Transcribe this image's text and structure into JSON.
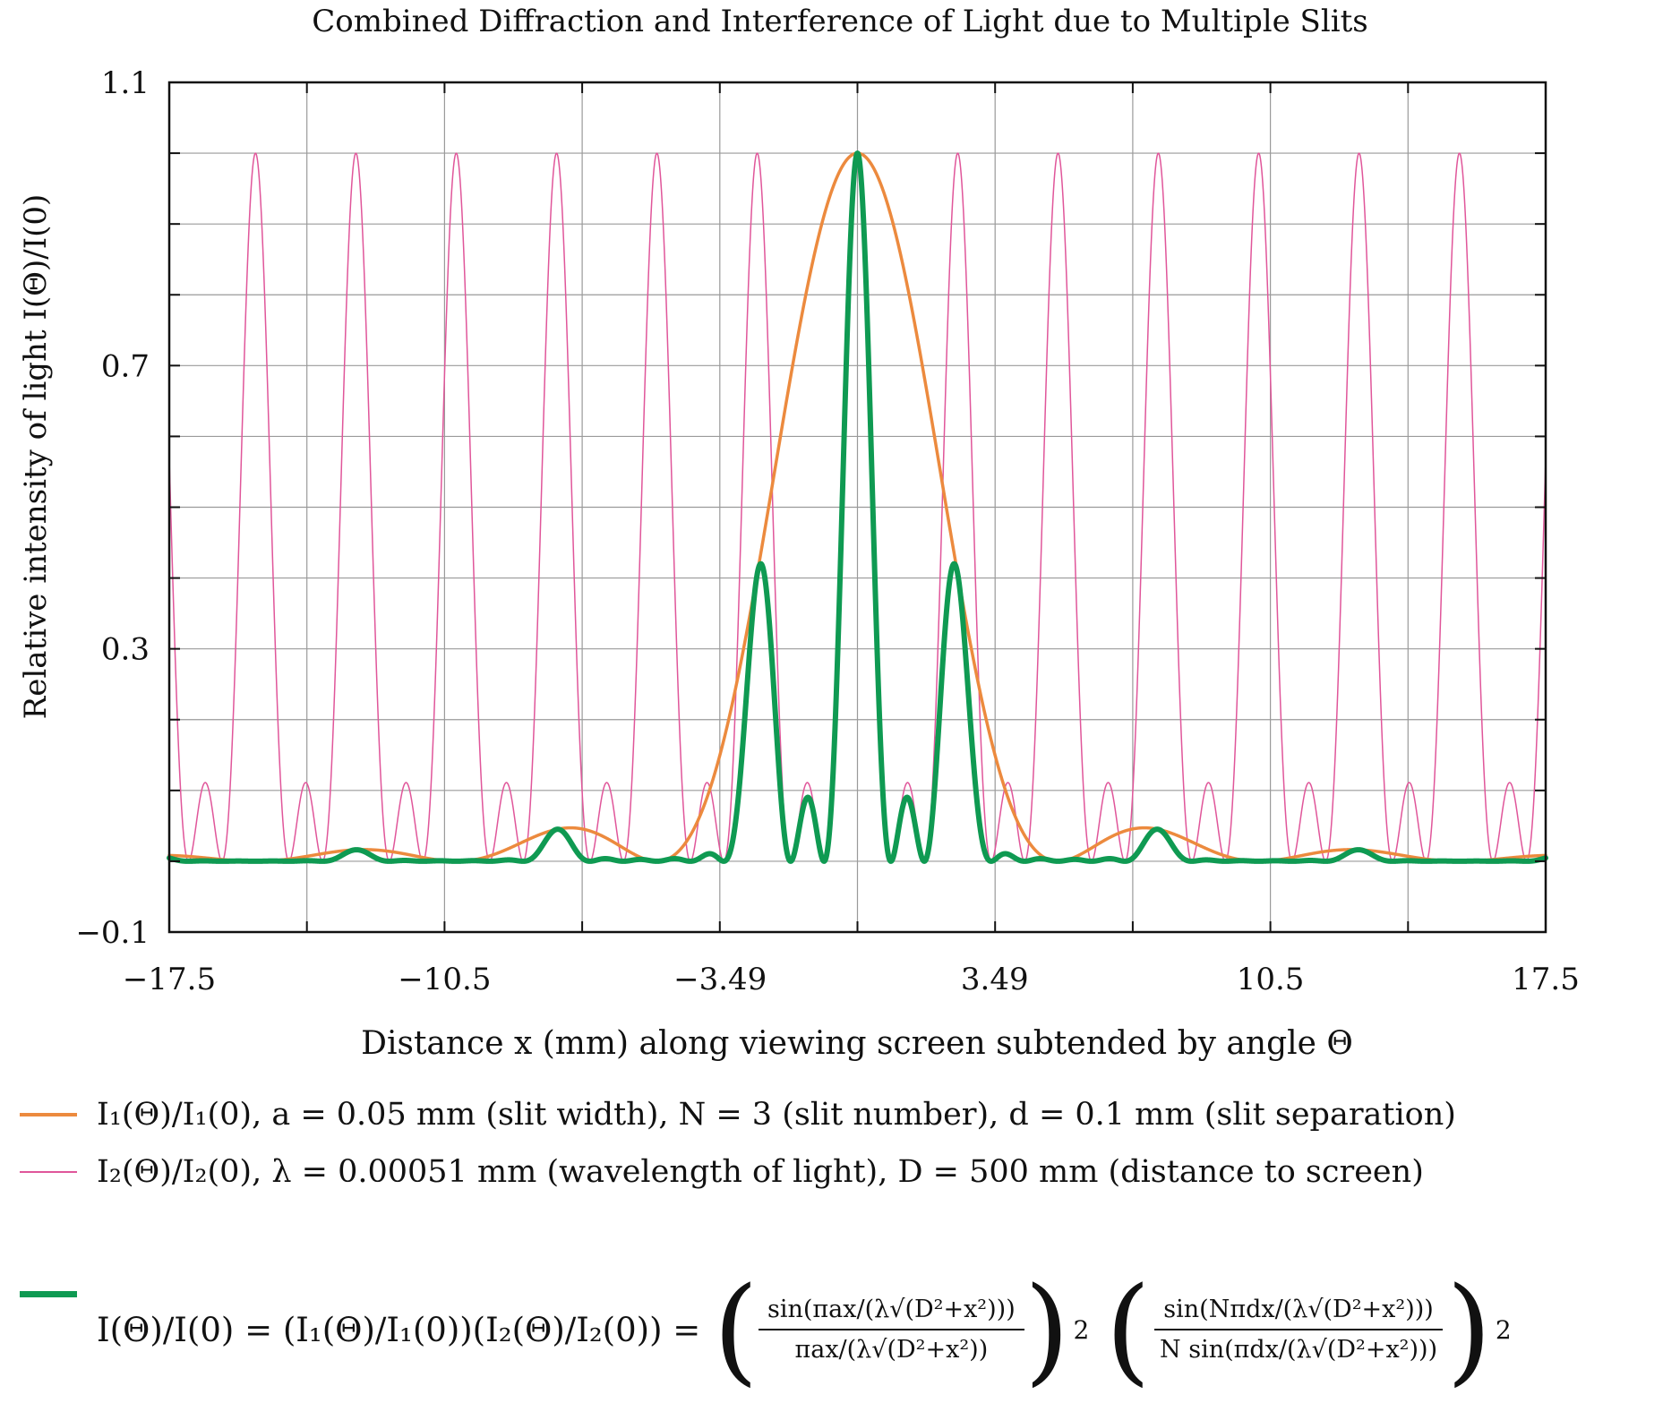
{
  "chart_data": {
    "type": "line",
    "title": "Combined Diffraction and Interference of Light due to Multiple Slits",
    "xlabel": "Distance x (mm) along viewing screen subtended by angle Θ",
    "ylabel": "Relative intensity of light I(Θ)/I(0)",
    "xlim": [
      -17.5,
      17.5
    ],
    "ylim": [
      -0.1,
      1.1
    ],
    "xticks": [
      -17.5,
      -10.5,
      -3.49,
      3.49,
      10.5,
      17.5
    ],
    "xtick_labels": [
      "−17.5",
      "−10.5",
      "−3.49",
      "3.49",
      "10.5",
      "17.5"
    ],
    "yticks": [
      -0.1,
      0.3,
      0.7,
      1.1
    ],
    "ytick_labels": [
      "−0.1",
      "0.3",
      "0.7",
      "1.1"
    ],
    "grid": true,
    "parameters": {
      "a_mm": 0.05,
      "N": 3,
      "d_mm": 0.1,
      "lambda_mm": 0.00051,
      "D_mm": 500
    },
    "series": [
      {
        "name": "I1(Θ)/I1(0), a = 0.05 mm (slit width), N = 3 (slit number), d = 0.1 mm (slit separation)",
        "color": "#ec8a3e",
        "line_width": 3.5,
        "description_of_values": "single-slit diffraction envelope",
        "x": [
          -17.5,
          -15.3,
          -12.75,
          -10.2,
          -7.3,
          -5.1,
          -3.49,
          -2.55,
          -1.5,
          0,
          1.5,
          2.55,
          3.49,
          5.1,
          7.3,
          10.2,
          12.75,
          15.3,
          17.5
        ],
        "y": [
          0.0003,
          0,
          0.008,
          0,
          0.047,
          0,
          0.16,
          0.41,
          0.77,
          1.0,
          0.77,
          0.41,
          0.16,
          0,
          0.047,
          0,
          0.008,
          0,
          0.0003
        ]
      },
      {
        "name": "I2(Θ)/I2(0), λ = 0.00051 mm (wavelength of light), D = 500 mm (distance to screen)",
        "color": "#e0569a",
        "line_width": 1.5,
        "description_of_values": "3-slit interference: principal maxima 1.0 every 2.55 mm, secondary maxima 0.111",
        "x": [
          -15.3,
          -12.75,
          -10.2,
          -7.65,
          -5.1,
          -2.55,
          0,
          2.55,
          5.1,
          7.65,
          10.2,
          12.75,
          15.3
        ],
        "y": [
          1,
          1,
          1,
          1,
          1,
          1,
          1,
          1,
          1,
          1,
          1,
          1,
          1
        ]
      },
      {
        "name": "I(Θ)/I(0) = (I1(Θ)/I1(0))(I2(Θ)/I2(0))",
        "color": "#0f9a52",
        "line_width": 6,
        "description_of_values": "product of diffraction envelope and interference pattern",
        "x": [
          -12.75,
          -10.2,
          -7.65,
          -5.1,
          -3.75,
          -2.55,
          -1.3,
          0,
          1.3,
          2.55,
          3.75,
          5.1,
          7.65,
          10.2,
          12.75
        ],
        "y": [
          0.008,
          0,
          0.045,
          0,
          0.0,
          0.41,
          0.05,
          1.0,
          0.05,
          0.41,
          0.0,
          0,
          0.045,
          0,
          0.008
        ]
      }
    ]
  },
  "legend": {
    "items": [
      {
        "label": "I₁(Θ)/I₁(0), a = 0.05 mm (slit width), N = 3 (slit number), d = 0.1 mm (slit separation)",
        "color": "#ec8a3e"
      },
      {
        "label": "I₂(Θ)/I₂(0), λ = 0.00051 mm (wavelength of light), D = 500 mm (distance to screen)",
        "color": "#e0569a"
      },
      {
        "label": "I(Θ)/I(0) = (I₁(Θ)/I₁(0))(I₂(Θ)/I₂(0)) =",
        "color": "#0f9a52"
      }
    ]
  },
  "formula": {
    "lhs": "I(Θ)/I(0) = (I₁(Θ)/I₁(0))(I₂(Θ)/I₂(0)) =",
    "frac1_num": "sin(πax/(λ√(D²+x²)))",
    "frac1_den": "πax/(λ√(D²+x²))",
    "frac2_num": "sin(Nπdx/(λ√(D²+x²)))",
    "frac2_den": "N sin(πdx/(λ√(D²+x²)))",
    "exponent": "2",
    "open_paren": "(",
    "close_paren": ")"
  }
}
